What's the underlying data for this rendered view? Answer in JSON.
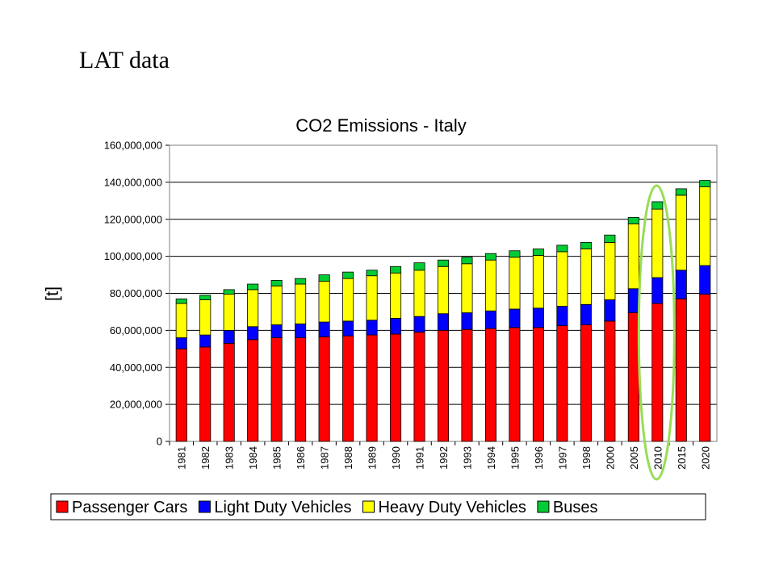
{
  "slide": {
    "heading": "LAT data"
  },
  "chart_data": {
    "type": "bar",
    "stacked": true,
    "title": "CO2 Emissions - Italy",
    "ylabel": "[t]",
    "xlabel": "",
    "ylim": [
      0,
      160000000
    ],
    "yticks": [
      0,
      20000000,
      40000000,
      60000000,
      80000000,
      100000000,
      120000000,
      140000000,
      160000000
    ],
    "ytick_labels": [
      "0",
      "20,000,000",
      "40,000,000",
      "60,000,000",
      "80,000,000",
      "100,000,000",
      "120,000,000",
      "140,000,000",
      "160,000,000"
    ],
    "grid": "horizontal",
    "legend_position": "bottom",
    "categories": [
      "1981",
      "1982",
      "1983",
      "1984",
      "1985",
      "1986",
      "1987",
      "1988",
      "1989",
      "1990",
      "1991",
      "1992",
      "1993",
      "1994",
      "1995",
      "1996",
      "1997",
      "1998",
      "2000",
      "2005",
      "2010",
      "2015",
      "2020"
    ],
    "series": [
      {
        "name": "Passenger Cars",
        "color": "#ff0000",
        "values": [
          50000000,
          51000000,
          53000000,
          55000000,
          56000000,
          56000000,
          56500000,
          57000000,
          57500000,
          58000000,
          59000000,
          60000000,
          60500000,
          61000000,
          61500000,
          61500000,
          62500000,
          63000000,
          65000000,
          69500000,
          74500000,
          77000000,
          79500000
        ]
      },
      {
        "name": "Light Duty Vehicles",
        "color": "#0000ff",
        "values": [
          6000000,
          6500000,
          7000000,
          7000000,
          7000000,
          7500000,
          8000000,
          8000000,
          8000000,
          8500000,
          8500000,
          9000000,
          9000000,
          9500000,
          10000000,
          10500000,
          10500000,
          11000000,
          11500000,
          13000000,
          14000000,
          15500000,
          15500000
        ]
      },
      {
        "name": "Heavy Duty Vehicles",
        "color": "#ffff00",
        "values": [
          18500000,
          19000000,
          19500000,
          20000000,
          21000000,
          21500000,
          22000000,
          23000000,
          24000000,
          24500000,
          25000000,
          25500000,
          26500000,
          27500000,
          28000000,
          28500000,
          29500000,
          30000000,
          31000000,
          35000000,
          37000000,
          40500000,
          42500000
        ]
      },
      {
        "name": "Buses",
        "color": "#00cc33",
        "values": [
          2500000,
          2500000,
          2500000,
          3000000,
          3000000,
          3000000,
          3500000,
          3500000,
          3000000,
          3500000,
          4000000,
          3500000,
          3500000,
          3500000,
          3500000,
          3500000,
          3500000,
          3500000,
          4000000,
          3500000,
          4000000,
          3500000,
          3500000
        ]
      }
    ],
    "highlight": {
      "category": "2010",
      "shape": "ellipse",
      "color": "#99dd55"
    }
  }
}
